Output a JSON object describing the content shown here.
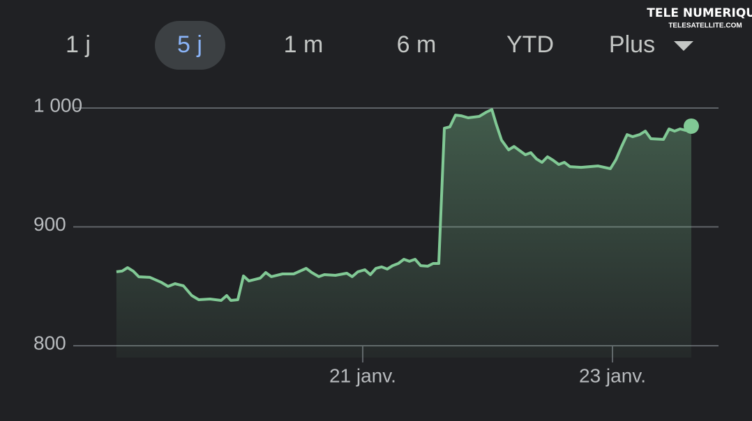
{
  "tabs": [
    "1 j",
    "5 j",
    "1 m",
    "6 m",
    "YTD",
    "Plus"
  ],
  "selected_tab": 1,
  "watermark": {
    "title": "TELE NUMERIQUE",
    "site": "TELESATELLITE.COM"
  },
  "chart_data": {
    "type": "area-line",
    "color": "#81c995",
    "grid": true,
    "xlim": [
      18.682,
      23.849
    ],
    "xticks": [
      {
        "value": 21,
        "label": "21 janv."
      },
      {
        "value": 23,
        "label": "23 janv."
      }
    ],
    "ylim": [
      790,
      1010
    ],
    "yticks": [
      {
        "value": 800,
        "label": "800"
      },
      {
        "value": 900,
        "label": "900"
      },
      {
        "value": 1000,
        "label": "1 000"
      }
    ],
    "x": [
      19.028,
      19.073,
      19.117,
      19.162,
      19.207,
      19.296,
      19.385,
      19.441,
      19.497,
      19.564,
      19.631,
      19.687,
      19.777,
      19.866,
      19.911,
      19.944,
      20.0,
      20.045,
      20.089,
      20.179,
      20.223,
      20.268,
      20.358,
      20.447,
      20.547,
      20.592,
      20.648,
      20.693,
      20.782,
      20.872,
      20.916,
      20.961,
      21.017,
      21.061,
      21.106,
      21.151,
      21.196,
      21.24,
      21.285,
      21.33,
      21.374,
      21.419,
      21.464,
      21.52,
      21.564,
      21.609,
      21.654,
      21.698,
      21.743,
      21.788,
      21.844,
      21.933,
      21.989,
      22.034,
      22.067,
      22.112,
      22.168,
      22.212,
      22.257,
      22.302,
      22.346,
      22.391,
      22.436,
      22.48,
      22.525,
      22.57,
      22.615,
      22.659,
      22.749,
      22.883,
      22.983,
      23.028,
      23.073,
      23.117,
      23.162,
      23.218,
      23.263,
      23.307,
      23.408,
      23.453,
      23.497,
      23.542,
      23.587,
      23.631
    ],
    "values": [
      862.2,
      862.8,
      865.7,
      862.8,
      858,
      857.5,
      853.4,
      849.9,
      852.2,
      850.4,
      842.2,
      838.7,
      839.3,
      838.1,
      842.2,
      838.1,
      838.7,
      858.7,
      854.5,
      856.9,
      861.6,
      858.1,
      860.4,
      860.4,
      865.1,
      861.6,
      858.1,
      859.8,
      859.2,
      861,
      858.1,
      862.2,
      863.9,
      859.8,
      865.1,
      866.3,
      864.5,
      867.4,
      869.2,
      872.7,
      871,
      872.7,
      867.4,
      866.9,
      869.2,
      869.2,
      983,
      984.2,
      994.1,
      993.5,
      991.8,
      993,
      996.5,
      998.8,
      987.1,
      973,
      964.8,
      967.7,
      964.2,
      960.7,
      962.5,
      957.2,
      954.3,
      959,
      956,
      952.5,
      954.3,
      950.7,
      950.1,
      951.3,
      949,
      956.6,
      967.7,
      977.7,
      975.9,
      977.7,
      980.6,
      974.2,
      973.6,
      982.4,
      980.6,
      982.4,
      981.2,
      984.8
    ]
  }
}
